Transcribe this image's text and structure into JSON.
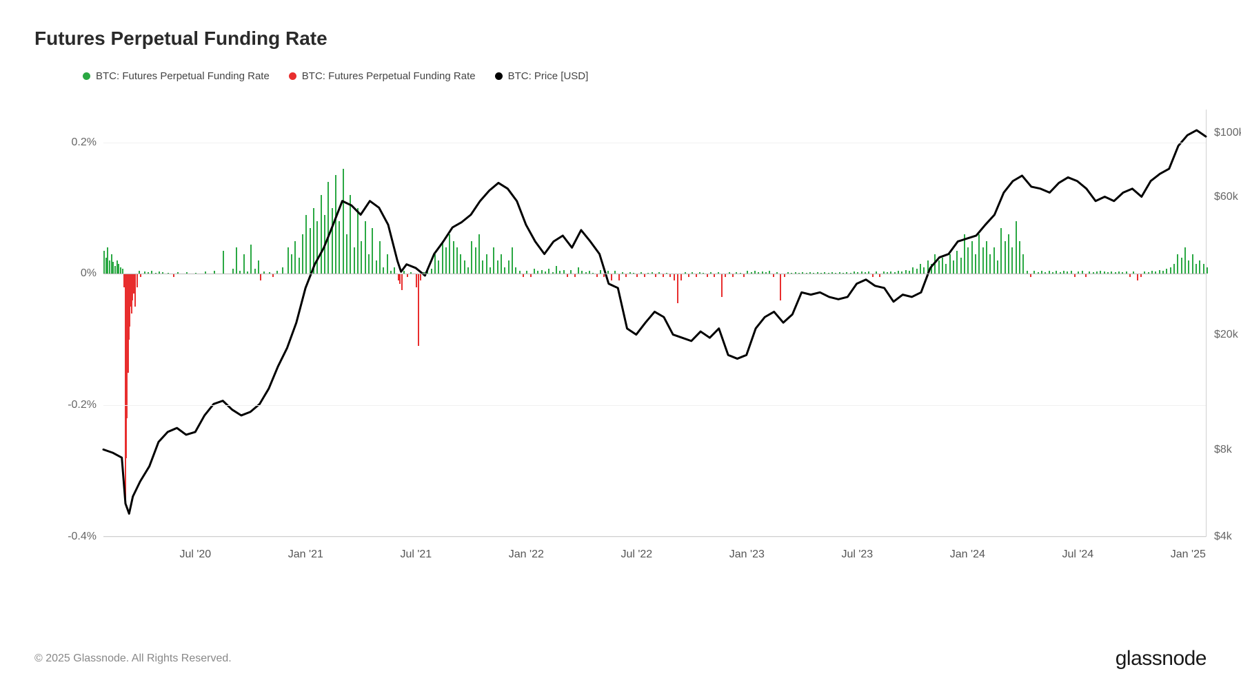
{
  "title": "Futures Perpetual Funding Rate",
  "legend": [
    {
      "color": "#2aa843",
      "label": "BTC: Futures Perpetual Funding Rate"
    },
    {
      "color": "#e82e2e",
      "label": "BTC: Futures Perpetual Funding Rate"
    },
    {
      "color": "#000000",
      "label": "BTC: Price [USD]"
    }
  ],
  "colors": {
    "positive_bar": "#2aa843",
    "negative_bar": "#e82e2e",
    "price_line": "#000000",
    "grid": "#f0f0f0",
    "axis": "#d0d0d0",
    "background": "#ffffff"
  },
  "left_axis": {
    "min": -0.4,
    "max": 0.25,
    "ticks": [
      {
        "v": 0.2,
        "label": "0.2%"
      },
      {
        "v": 0.0,
        "label": "0%"
      },
      {
        "v": -0.2,
        "label": "-0.2%"
      },
      {
        "v": -0.4,
        "label": "-0.4%"
      }
    ]
  },
  "right_axis": {
    "type": "log",
    "min_log": 3.602,
    "max_log": 5.08,
    "ticks": [
      {
        "v": 100000,
        "label": "$100k"
      },
      {
        "v": 60000,
        "label": "$60k"
      },
      {
        "v": 20000,
        "label": "$20k"
      },
      {
        "v": 8000,
        "label": "$8k"
      },
      {
        "v": 4000,
        "label": "$4k"
      }
    ]
  },
  "x_axis": {
    "min": 0,
    "max": 60,
    "ticks": [
      {
        "v": 5,
        "label": "Jul '20"
      },
      {
        "v": 11,
        "label": "Jan '21"
      },
      {
        "v": 17,
        "label": "Jul '21"
      },
      {
        "v": 23,
        "label": "Jan '22"
      },
      {
        "v": 29,
        "label": "Jul '22"
      },
      {
        "v": 35,
        "label": "Jan '23"
      },
      {
        "v": 41,
        "label": "Jul '23"
      },
      {
        "v": 47,
        "label": "Jan '24"
      },
      {
        "v": 53,
        "label": "Jul '24"
      },
      {
        "v": 59,
        "label": "Jan '25"
      }
    ]
  },
  "funding_rate": [
    [
      0.0,
      0.035
    ],
    [
      0.1,
      0.025
    ],
    [
      0.2,
      0.04
    ],
    [
      0.3,
      0.02
    ],
    [
      0.4,
      0.03
    ],
    [
      0.5,
      0.018
    ],
    [
      0.6,
      0.012
    ],
    [
      0.7,
      0.02
    ],
    [
      0.8,
      0.015
    ],
    [
      0.9,
      0.01
    ],
    [
      1.0,
      0.008
    ],
    [
      1.1,
      -0.02
    ],
    [
      1.15,
      -0.35
    ],
    [
      1.2,
      -0.28
    ],
    [
      1.25,
      -0.22
    ],
    [
      1.3,
      -0.15
    ],
    [
      1.35,
      -0.1
    ],
    [
      1.4,
      -0.08
    ],
    [
      1.45,
      -0.05
    ],
    [
      1.5,
      -0.06
    ],
    [
      1.55,
      -0.04
    ],
    [
      1.6,
      -0.03
    ],
    [
      1.7,
      -0.05
    ],
    [
      1.8,
      -0.02
    ],
    [
      1.9,
      0.005
    ],
    [
      2.0,
      -0.005
    ],
    [
      2.2,
      0.004
    ],
    [
      2.4,
      0.003
    ],
    [
      2.6,
      0.005
    ],
    [
      2.8,
      0.002
    ],
    [
      3.0,
      0.004
    ],
    [
      3.2,
      0.003
    ],
    [
      3.5,
      0.002
    ],
    [
      3.8,
      -0.005
    ],
    [
      4.0,
      0.003
    ],
    [
      4.5,
      0.003
    ],
    [
      5.0,
      0.002
    ],
    [
      5.5,
      0.004
    ],
    [
      6.0,
      0.005
    ],
    [
      6.5,
      0.035
    ],
    [
      7.0,
      0.008
    ],
    [
      7.2,
      0.04
    ],
    [
      7.4,
      0.005
    ],
    [
      7.6,
      0.03
    ],
    [
      7.8,
      0.004
    ],
    [
      8.0,
      0.045
    ],
    [
      8.2,
      0.008
    ],
    [
      8.4,
      0.02
    ],
    [
      8.5,
      -0.01
    ],
    [
      8.7,
      0.004
    ],
    [
      9.0,
      0.003
    ],
    [
      9.2,
      -0.005
    ],
    [
      9.4,
      0.005
    ],
    [
      9.7,
      0.01
    ],
    [
      10.0,
      0.04
    ],
    [
      10.2,
      0.03
    ],
    [
      10.4,
      0.05
    ],
    [
      10.6,
      0.025
    ],
    [
      10.8,
      0.06
    ],
    [
      11.0,
      0.09
    ],
    [
      11.2,
      0.07
    ],
    [
      11.4,
      0.1
    ],
    [
      11.6,
      0.08
    ],
    [
      11.8,
      0.12
    ],
    [
      12.0,
      0.09
    ],
    [
      12.2,
      0.14
    ],
    [
      12.4,
      0.1
    ],
    [
      12.6,
      0.15
    ],
    [
      12.8,
      0.08
    ],
    [
      13.0,
      0.16
    ],
    [
      13.2,
      0.06
    ],
    [
      13.4,
      0.12
    ],
    [
      13.6,
      0.04
    ],
    [
      13.8,
      0.1
    ],
    [
      14.0,
      0.05
    ],
    [
      14.2,
      0.08
    ],
    [
      14.4,
      0.03
    ],
    [
      14.6,
      0.07
    ],
    [
      14.8,
      0.02
    ],
    [
      15.0,
      0.05
    ],
    [
      15.2,
      0.01
    ],
    [
      15.4,
      0.03
    ],
    [
      15.6,
      0.005
    ],
    [
      15.8,
      0.01
    ],
    [
      16.0,
      -0.01
    ],
    [
      16.1,
      -0.015
    ],
    [
      16.2,
      -0.025
    ],
    [
      16.3,
      0.005
    ],
    [
      16.5,
      -0.005
    ],
    [
      16.7,
      0.003
    ],
    [
      17.0,
      -0.02
    ],
    [
      17.1,
      -0.11
    ],
    [
      17.2,
      -0.01
    ],
    [
      17.4,
      0.003
    ],
    [
      17.6,
      0.005
    ],
    [
      17.8,
      0.008
    ],
    [
      18.0,
      0.03
    ],
    [
      18.2,
      0.02
    ],
    [
      18.4,
      0.05
    ],
    [
      18.6,
      0.04
    ],
    [
      18.8,
      0.06
    ],
    [
      19.0,
      0.05
    ],
    [
      19.2,
      0.04
    ],
    [
      19.4,
      0.03
    ],
    [
      19.6,
      0.02
    ],
    [
      19.8,
      0.01
    ],
    [
      20.0,
      0.05
    ],
    [
      20.2,
      0.04
    ],
    [
      20.4,
      0.06
    ],
    [
      20.6,
      0.02
    ],
    [
      20.8,
      0.03
    ],
    [
      21.0,
      0.01
    ],
    [
      21.2,
      0.04
    ],
    [
      21.4,
      0.02
    ],
    [
      21.6,
      0.03
    ],
    [
      21.8,
      0.01
    ],
    [
      22.0,
      0.02
    ],
    [
      22.2,
      0.04
    ],
    [
      22.4,
      0.01
    ],
    [
      22.6,
      0.005
    ],
    [
      22.8,
      -0.005
    ],
    [
      23.0,
      0.005
    ],
    [
      23.2,
      -0.005
    ],
    [
      23.4,
      0.008
    ],
    [
      23.6,
      0.005
    ],
    [
      23.8,
      0.006
    ],
    [
      24.0,
      0.004
    ],
    [
      24.2,
      0.008
    ],
    [
      24.4,
      0.003
    ],
    [
      24.6,
      0.012
    ],
    [
      24.8,
      0.005
    ],
    [
      25.0,
      0.006
    ],
    [
      25.2,
      -0.005
    ],
    [
      25.4,
      0.006
    ],
    [
      25.6,
      -0.005
    ],
    [
      25.8,
      0.01
    ],
    [
      26.0,
      0.005
    ],
    [
      26.2,
      0.003
    ],
    [
      26.4,
      0.005
    ],
    [
      26.6,
      0.002
    ],
    [
      26.8,
      -0.005
    ],
    [
      27.0,
      0.006
    ],
    [
      27.2,
      -0.005
    ],
    [
      27.4,
      0.005
    ],
    [
      27.6,
      -0.01
    ],
    [
      27.8,
      0.005
    ],
    [
      28.0,
      -0.01
    ],
    [
      28.2,
      0.003
    ],
    [
      28.4,
      -0.005
    ],
    [
      28.6,
      0.003
    ],
    [
      28.8,
      0.002
    ],
    [
      29.0,
      -0.005
    ],
    [
      29.2,
      0.003
    ],
    [
      29.4,
      -0.005
    ],
    [
      29.6,
      0.002
    ],
    [
      29.8,
      0.003
    ],
    [
      30.0,
      -0.005
    ],
    [
      30.2,
      0.003
    ],
    [
      30.4,
      -0.005
    ],
    [
      30.6,
      0.002
    ],
    [
      30.8,
      -0.005
    ],
    [
      31.0,
      -0.01
    ],
    [
      31.2,
      -0.045
    ],
    [
      31.4,
      -0.01
    ],
    [
      31.6,
      0.003
    ],
    [
      31.8,
      -0.005
    ],
    [
      32.0,
      0.003
    ],
    [
      32.2,
      -0.005
    ],
    [
      32.4,
      0.003
    ],
    [
      32.6,
      0.002
    ],
    [
      32.8,
      -0.005
    ],
    [
      33.0,
      0.003
    ],
    [
      33.2,
      -0.005
    ],
    [
      33.4,
      0.003
    ],
    [
      33.6,
      -0.035
    ],
    [
      33.8,
      -0.005
    ],
    [
      34.0,
      0.003
    ],
    [
      34.2,
      -0.005
    ],
    [
      34.4,
      0.003
    ],
    [
      34.6,
      0.002
    ],
    [
      34.8,
      -0.005
    ],
    [
      35.0,
      0.005
    ],
    [
      35.2,
      0.003
    ],
    [
      35.4,
      0.005
    ],
    [
      35.6,
      0.003
    ],
    [
      35.8,
      0.004
    ],
    [
      36.0,
      0.003
    ],
    [
      36.2,
      0.005
    ],
    [
      36.4,
      -0.005
    ],
    [
      36.6,
      0.003
    ],
    [
      36.8,
      -0.04
    ],
    [
      37.0,
      -0.005
    ],
    [
      37.2,
      0.003
    ],
    [
      37.4,
      0.002
    ],
    [
      37.6,
      0.003
    ],
    [
      37.8,
      0.002
    ],
    [
      38.0,
      0.003
    ],
    [
      38.2,
      0.002
    ],
    [
      38.4,
      0.003
    ],
    [
      38.6,
      0.002
    ],
    [
      38.8,
      0.003
    ],
    [
      39.0,
      0.002
    ],
    [
      39.2,
      0.003
    ],
    [
      39.4,
      0.002
    ],
    [
      39.6,
      0.003
    ],
    [
      39.8,
      0.002
    ],
    [
      40.0,
      0.003
    ],
    [
      40.2,
      0.002
    ],
    [
      40.4,
      0.003
    ],
    [
      40.6,
      0.002
    ],
    [
      40.8,
      0.004
    ],
    [
      41.0,
      0.003
    ],
    [
      41.2,
      0.004
    ],
    [
      41.4,
      0.003
    ],
    [
      41.6,
      0.004
    ],
    [
      41.8,
      -0.005
    ],
    [
      42.0,
      0.004
    ],
    [
      42.2,
      -0.005
    ],
    [
      42.4,
      0.004
    ],
    [
      42.6,
      0.003
    ],
    [
      42.8,
      0.004
    ],
    [
      43.0,
      0.003
    ],
    [
      43.2,
      0.005
    ],
    [
      43.4,
      0.004
    ],
    [
      43.6,
      0.006
    ],
    [
      43.8,
      0.005
    ],
    [
      44.0,
      0.01
    ],
    [
      44.2,
      0.008
    ],
    [
      44.4,
      0.015
    ],
    [
      44.6,
      0.01
    ],
    [
      44.8,
      0.02
    ],
    [
      45.0,
      0.015
    ],
    [
      45.2,
      0.03
    ],
    [
      45.4,
      0.02
    ],
    [
      45.6,
      0.025
    ],
    [
      45.8,
      0.015
    ],
    [
      46.0,
      0.03
    ],
    [
      46.2,
      0.02
    ],
    [
      46.4,
      0.035
    ],
    [
      46.6,
      0.025
    ],
    [
      46.8,
      0.06
    ],
    [
      47.0,
      0.04
    ],
    [
      47.2,
      0.05
    ],
    [
      47.4,
      0.03
    ],
    [
      47.6,
      0.06
    ],
    [
      47.8,
      0.04
    ],
    [
      48.0,
      0.05
    ],
    [
      48.2,
      0.03
    ],
    [
      48.4,
      0.04
    ],
    [
      48.6,
      0.02
    ],
    [
      48.8,
      0.07
    ],
    [
      49.0,
      0.05
    ],
    [
      49.2,
      0.06
    ],
    [
      49.4,
      0.04
    ],
    [
      49.6,
      0.08
    ],
    [
      49.8,
      0.05
    ],
    [
      50.0,
      0.03
    ],
    [
      50.2,
      0.005
    ],
    [
      50.4,
      -0.005
    ],
    [
      50.6,
      0.005
    ],
    [
      50.8,
      0.003
    ],
    [
      51.0,
      0.005
    ],
    [
      51.2,
      0.003
    ],
    [
      51.4,
      0.005
    ],
    [
      51.6,
      0.003
    ],
    [
      51.8,
      0.005
    ],
    [
      52.0,
      0.003
    ],
    [
      52.2,
      0.005
    ],
    [
      52.4,
      0.004
    ],
    [
      52.6,
      0.005
    ],
    [
      52.8,
      -0.005
    ],
    [
      53.0,
      0.004
    ],
    [
      53.2,
      0.005
    ],
    [
      53.4,
      -0.005
    ],
    [
      53.6,
      0.004
    ],
    [
      53.8,
      0.003
    ],
    [
      54.0,
      0.004
    ],
    [
      54.2,
      0.005
    ],
    [
      54.4,
      0.004
    ],
    [
      54.6,
      0.003
    ],
    [
      54.8,
      0.004
    ],
    [
      55.0,
      0.003
    ],
    [
      55.2,
      0.004
    ],
    [
      55.4,
      0.003
    ],
    [
      55.6,
      0.004
    ],
    [
      55.8,
      -0.005
    ],
    [
      56.0,
      0.004
    ],
    [
      56.2,
      -0.01
    ],
    [
      56.4,
      -0.005
    ],
    [
      56.6,
      0.004
    ],
    [
      56.8,
      0.003
    ],
    [
      57.0,
      0.005
    ],
    [
      57.2,
      0.004
    ],
    [
      57.4,
      0.006
    ],
    [
      57.6,
      0.005
    ],
    [
      57.8,
      0.008
    ],
    [
      58.0,
      0.01
    ],
    [
      58.2,
      0.015
    ],
    [
      58.4,
      0.03
    ],
    [
      58.6,
      0.025
    ],
    [
      58.8,
      0.04
    ],
    [
      59.0,
      0.02
    ],
    [
      59.2,
      0.03
    ],
    [
      59.4,
      0.015
    ],
    [
      59.6,
      0.02
    ],
    [
      59.8,
      0.015
    ],
    [
      60.0,
      0.01
    ]
  ],
  "price_path": [
    [
      0,
      8000
    ],
    [
      0.5,
      7800
    ],
    [
      1,
      7500
    ],
    [
      1.2,
      5200
    ],
    [
      1.4,
      4800
    ],
    [
      1.6,
      5500
    ],
    [
      2,
      6200
    ],
    [
      2.5,
      7000
    ],
    [
      3,
      8500
    ],
    [
      3.5,
      9200
    ],
    [
      4,
      9500
    ],
    [
      4.5,
      9000
    ],
    [
      5,
      9200
    ],
    [
      5.5,
      10500
    ],
    [
      6,
      11500
    ],
    [
      6.5,
      11800
    ],
    [
      7,
      11000
    ],
    [
      7.5,
      10500
    ],
    [
      8,
      10800
    ],
    [
      8.5,
      11500
    ],
    [
      9,
      13000
    ],
    [
      9.5,
      15500
    ],
    [
      10,
      18000
    ],
    [
      10.5,
      22000
    ],
    [
      11,
      29000
    ],
    [
      11.5,
      35000
    ],
    [
      12,
      40000
    ],
    [
      12.5,
      48000
    ],
    [
      13,
      58000
    ],
    [
      13.5,
      56000
    ],
    [
      14,
      52000
    ],
    [
      14.5,
      58000
    ],
    [
      15,
      55000
    ],
    [
      15.5,
      48000
    ],
    [
      16,
      36000
    ],
    [
      16.2,
      33000
    ],
    [
      16.5,
      35000
    ],
    [
      17,
      34000
    ],
    [
      17.5,
      32000
    ],
    [
      18,
      38000
    ],
    [
      18.5,
      42000
    ],
    [
      19,
      47000
    ],
    [
      19.5,
      49000
    ],
    [
      20,
      52000
    ],
    [
      20.5,
      58000
    ],
    [
      21,
      63000
    ],
    [
      21.5,
      67000
    ],
    [
      22,
      64000
    ],
    [
      22.5,
      58000
    ],
    [
      23,
      48000
    ],
    [
      23.5,
      42000
    ],
    [
      24,
      38000
    ],
    [
      24.5,
      42000
    ],
    [
      25,
      44000
    ],
    [
      25.5,
      40000
    ],
    [
      26,
      46000
    ],
    [
      26.5,
      42000
    ],
    [
      27,
      38000
    ],
    [
      27.5,
      30000
    ],
    [
      28,
      29000
    ],
    [
      28.5,
      21000
    ],
    [
      29,
      20000
    ],
    [
      29.5,
      22000
    ],
    [
      30,
      24000
    ],
    [
      30.5,
      23000
    ],
    [
      31,
      20000
    ],
    [
      31.5,
      19500
    ],
    [
      32,
      19000
    ],
    [
      32.5,
      20500
    ],
    [
      33,
      19500
    ],
    [
      33.5,
      21000
    ],
    [
      34,
      17000
    ],
    [
      34.5,
      16500
    ],
    [
      35,
      17000
    ],
    [
      35.5,
      21000
    ],
    [
      36,
      23000
    ],
    [
      36.5,
      24000
    ],
    [
      37,
      22000
    ],
    [
      37.5,
      23500
    ],
    [
      38,
      28000
    ],
    [
      38.5,
      27500
    ],
    [
      39,
      28000
    ],
    [
      39.5,
      27000
    ],
    [
      40,
      26500
    ],
    [
      40.5,
      27000
    ],
    [
      41,
      30000
    ],
    [
      41.5,
      31000
    ],
    [
      42,
      29500
    ],
    [
      42.5,
      29000
    ],
    [
      43,
      26000
    ],
    [
      43.5,
      27500
    ],
    [
      44,
      27000
    ],
    [
      44.5,
      28000
    ],
    [
      45,
      34000
    ],
    [
      45.5,
      37000
    ],
    [
      46,
      38000
    ],
    [
      46.5,
      42000
    ],
    [
      47,
      43000
    ],
    [
      47.5,
      44000
    ],
    [
      48,
      48000
    ],
    [
      48.5,
      52000
    ],
    [
      49,
      62000
    ],
    [
      49.5,
      68000
    ],
    [
      50,
      71000
    ],
    [
      50.5,
      65000
    ],
    [
      51,
      64000
    ],
    [
      51.5,
      62000
    ],
    [
      52,
      67000
    ],
    [
      52.5,
      70000
    ],
    [
      53,
      68000
    ],
    [
      53.5,
      64000
    ],
    [
      54,
      58000
    ],
    [
      54.5,
      60000
    ],
    [
      55,
      58000
    ],
    [
      55.5,
      62000
    ],
    [
      56,
      64000
    ],
    [
      56.5,
      60000
    ],
    [
      57,
      68000
    ],
    [
      57.5,
      72000
    ],
    [
      58,
      75000
    ],
    [
      58.5,
      90000
    ],
    [
      59,
      98000
    ],
    [
      59.5,
      102000
    ],
    [
      60,
      97000
    ]
  ],
  "line_width": 3,
  "footer": {
    "copyright": "© 2025 Glassnode. All Rights Reserved.",
    "brand": "glassnode"
  }
}
